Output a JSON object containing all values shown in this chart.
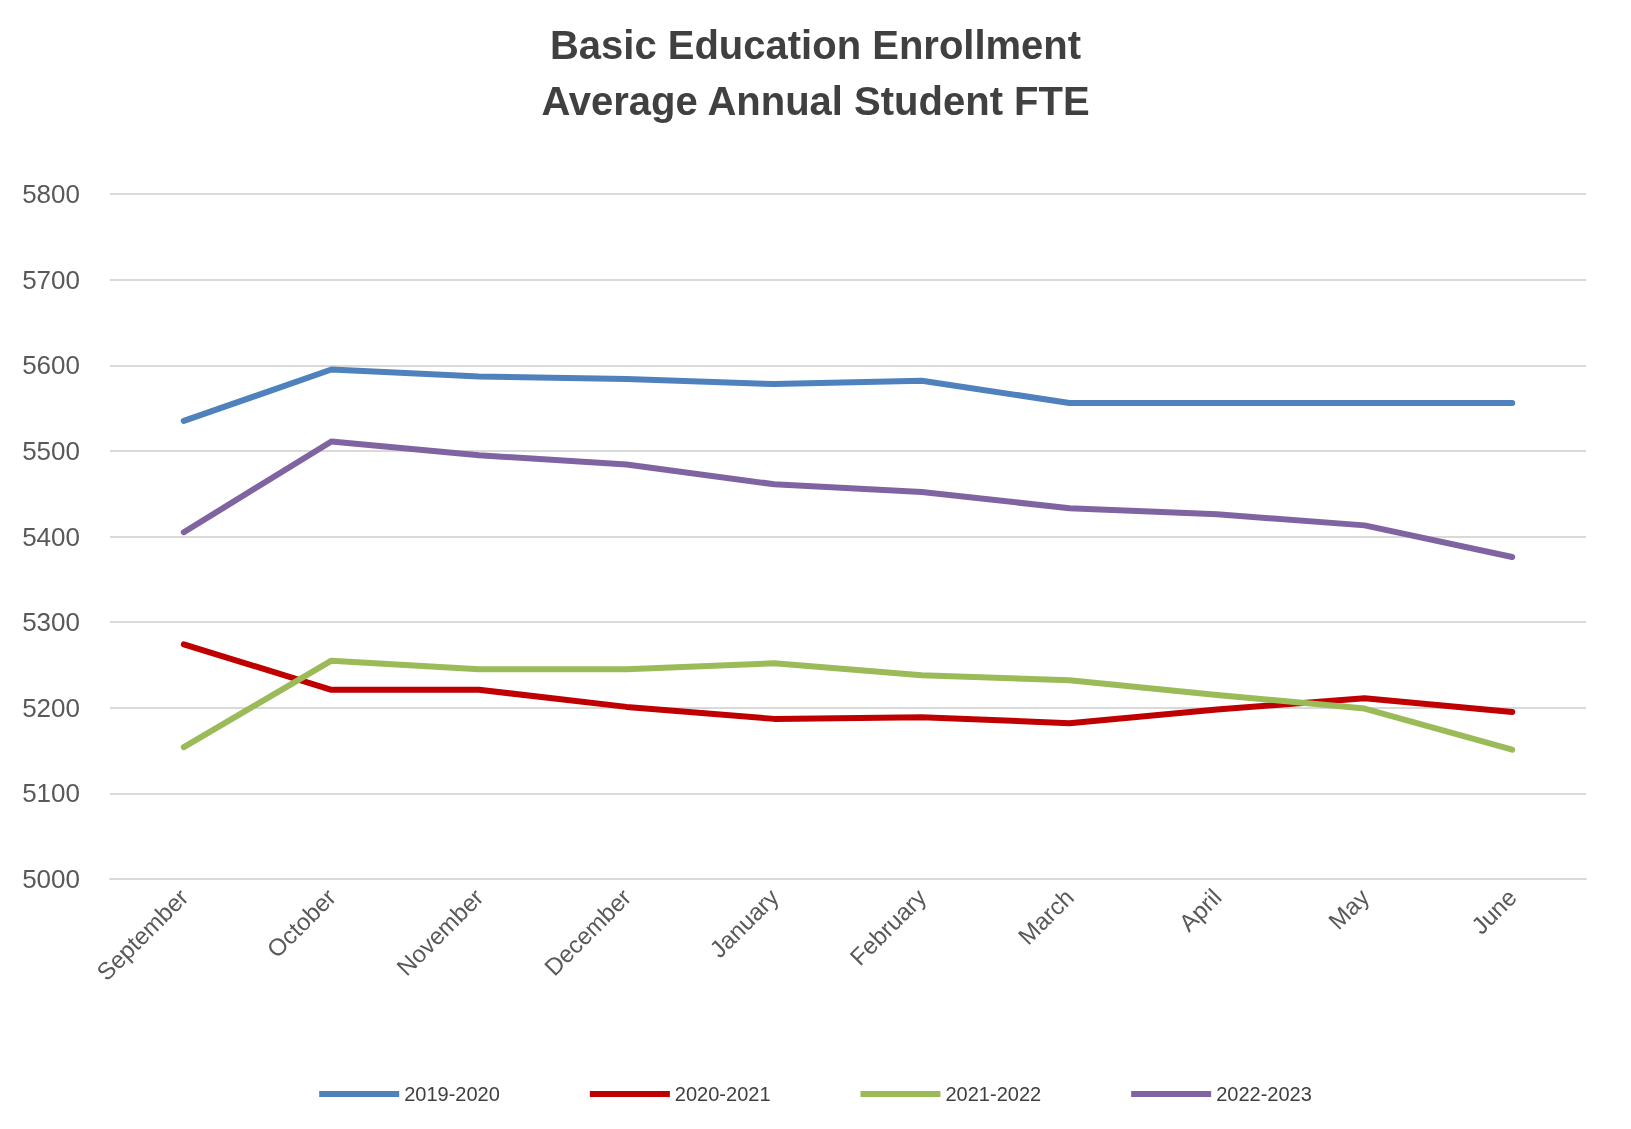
{
  "chart_data": {
    "type": "line",
    "title": "Basic Education Enrollment\nAverage Annual Student FTE",
    "categories": [
      "September",
      "October",
      "November",
      "December",
      "January",
      "February",
      "March",
      "April",
      "May",
      "June"
    ],
    "series": [
      {
        "name": "2019-2020",
        "color": "#4f81bd",
        "values": [
          5535,
          5595,
          5587,
          5584,
          5578,
          5582,
          5556,
          5556,
          5556,
          5556
        ]
      },
      {
        "name": "2020-2021",
        "color": "#c00000",
        "values": [
          5274,
          5221,
          5221,
          5201,
          5187,
          5189,
          5182,
          5198,
          5211,
          5195
        ]
      },
      {
        "name": "2021-2022",
        "color": "#9bbb59",
        "values": [
          5154,
          5255,
          5245,
          5245,
          5252,
          5238,
          5232,
          5215,
          5199,
          5151
        ]
      },
      {
        "name": "2022-2023",
        "color": "#8064a2",
        "values": [
          5405,
          5511,
          5495,
          5484,
          5461,
          5452,
          5433,
          5426,
          5413,
          5376
        ]
      }
    ],
    "ylim": [
      5000,
      5800
    ],
    "yticks": [
      5000,
      5100,
      5200,
      5300,
      5400,
      5500,
      5600,
      5700,
      5800
    ],
    "grid": "y",
    "legend": "bottom",
    "marker": "none",
    "line_style": "solid"
  }
}
